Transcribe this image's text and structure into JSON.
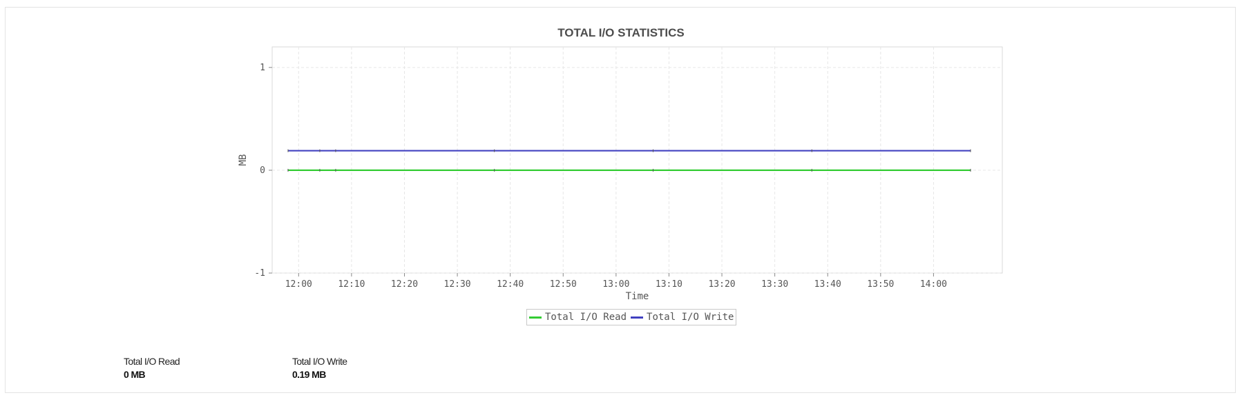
{
  "chart_data": {
    "type": "line",
    "title": "TOTAL I/O STATISTICS",
    "xlabel": "Time",
    "ylabel": "MB",
    "x_ticks": [
      "12:00",
      "12:10",
      "12:20",
      "12:30",
      "12:40",
      "12:50",
      "13:00",
      "13:10",
      "13:20",
      "13:30",
      "13:40",
      "13:50",
      "14:00"
    ],
    "x_range": [
      "11:55",
      "14:13"
    ],
    "y_ticks": [
      -1,
      0,
      1
    ],
    "ylim": [
      -1,
      1.2
    ],
    "grid": true,
    "legend_position": "bottom-center",
    "series": [
      {
        "name": "Total I/O Read",
        "color": "#33cc33",
        "points": [
          {
            "x": "11:58",
            "y": 0
          },
          {
            "x": "12:04",
            "y": 0
          },
          {
            "x": "12:07",
            "y": 0
          },
          {
            "x": "12:37",
            "y": 0
          },
          {
            "x": "13:07",
            "y": 0
          },
          {
            "x": "13:37",
            "y": 0
          },
          {
            "x": "14:07",
            "y": 0
          }
        ]
      },
      {
        "name": "Total I/O Write",
        "color": "#4040c0",
        "points": [
          {
            "x": "11:58",
            "y": 0.19
          },
          {
            "x": "12:04",
            "y": 0.19
          },
          {
            "x": "12:07",
            "y": 0.19
          },
          {
            "x": "12:37",
            "y": 0.19
          },
          {
            "x": "13:07",
            "y": 0.19
          },
          {
            "x": "13:37",
            "y": 0.19
          },
          {
            "x": "14:07",
            "y": 0.19
          }
        ]
      }
    ]
  },
  "summary": [
    {
      "label": "Total I/O Read",
      "value": "0 MB"
    },
    {
      "label": "Total I/O Write",
      "value": "0.19 MB"
    }
  ]
}
